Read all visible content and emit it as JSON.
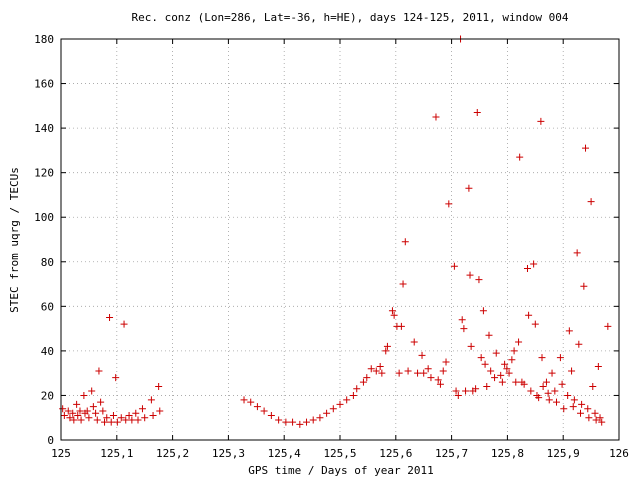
{
  "chart_data": {
    "type": "scatter",
    "title": "Rec. conz (Lon=286, Lat=-36, h=HE), days 124-125, 2011, window 004",
    "xlabel": "GPS time / Days of year 2011",
    "ylabel": "STEC from uqrg / TECUs",
    "xlim": [
      125,
      126
    ],
    "ylim": [
      0,
      180
    ],
    "xticks": [
      "125",
      "125,1",
      "125,2",
      "125,3",
      "125,4",
      "125,5",
      "125,6",
      "125,7",
      "125,8",
      "125,9",
      "126"
    ],
    "yticks": [
      "0",
      "20",
      "40",
      "60",
      "80",
      "100",
      "120",
      "140",
      "160",
      "180"
    ],
    "grid": true,
    "marker": "plus",
    "color": "#cc0000",
    "points": [
      [
        125.003,
        14
      ],
      [
        125.006,
        11
      ],
      [
        125.013,
        13
      ],
      [
        125.016,
        10
      ],
      [
        125.021,
        12
      ],
      [
        125.023,
        9
      ],
      [
        125.028,
        16
      ],
      [
        125.03,
        11
      ],
      [
        125.034,
        13
      ],
      [
        125.036,
        9
      ],
      [
        125.041,
        20
      ],
      [
        125.043,
        12
      ],
      [
        125.047,
        13
      ],
      [
        125.05,
        10
      ],
      [
        125.055,
        22
      ],
      [
        125.058,
        15
      ],
      [
        125.062,
        12
      ],
      [
        125.065,
        9
      ],
      [
        125.068,
        31
      ],
      [
        125.071,
        17
      ],
      [
        125.075,
        13
      ],
      [
        125.078,
        8
      ],
      [
        125.082,
        10
      ],
      [
        125.087,
        55
      ],
      [
        125.09,
        8
      ],
      [
        125.094,
        11
      ],
      [
        125.098,
        28
      ],
      [
        125.101,
        8
      ],
      [
        125.108,
        10
      ],
      [
        125.113,
        52
      ],
      [
        125.116,
        9
      ],
      [
        125.122,
        11
      ],
      [
        125.127,
        9
      ],
      [
        125.134,
        12
      ],
      [
        125.138,
        9
      ],
      [
        125.146,
        14
      ],
      [
        125.15,
        10
      ],
      [
        125.162,
        18
      ],
      [
        125.165,
        11
      ],
      [
        125.175,
        24
      ],
      [
        125.177,
        13
      ],
      [
        125.328,
        18
      ],
      [
        125.34,
        17
      ],
      [
        125.352,
        15
      ],
      [
        125.364,
        13
      ],
      [
        125.377,
        11
      ],
      [
        125.39,
        9
      ],
      [
        125.403,
        8
      ],
      [
        125.415,
        8
      ],
      [
        125.428,
        7
      ],
      [
        125.44,
        8
      ],
      [
        125.452,
        9
      ],
      [
        125.464,
        10
      ],
      [
        125.476,
        12
      ],
      [
        125.488,
        14
      ],
      [
        125.5,
        16
      ],
      [
        125.512,
        18
      ],
      [
        125.524,
        20
      ],
      [
        125.53,
        23
      ],
      [
        125.542,
        26
      ],
      [
        125.548,
        28
      ],
      [
        125.556,
        32
      ],
      [
        125.565,
        31
      ],
      [
        125.572,
        33
      ],
      [
        125.575,
        30
      ],
      [
        125.582,
        40
      ],
      [
        125.585,
        42
      ],
      [
        125.594,
        58
      ],
      [
        125.597,
        56
      ],
      [
        125.602,
        51
      ],
      [
        125.606,
        30
      ],
      [
        125.61,
        51
      ],
      [
        125.613,
        70
      ],
      [
        125.617,
        89
      ],
      [
        125.622,
        31
      ],
      [
        125.633,
        44
      ],
      [
        125.639,
        30
      ],
      [
        125.647,
        38
      ],
      [
        125.65,
        30
      ],
      [
        125.658,
        32
      ],
      [
        125.663,
        28
      ],
      [
        125.672,
        145
      ],
      [
        125.676,
        27
      ],
      [
        125.68,
        25
      ],
      [
        125.685,
        31
      ],
      [
        125.69,
        35
      ],
      [
        125.695,
        106
      ],
      [
        125.705,
        78
      ],
      [
        125.708,
        22
      ],
      [
        125.712,
        20
      ],
      [
        125.716,
        180
      ],
      [
        125.719,
        54
      ],
      [
        125.722,
        50
      ],
      [
        125.725,
        22
      ],
      [
        125.731,
        113
      ],
      [
        125.733,
        74
      ],
      [
        125.735,
        42
      ],
      [
        125.738,
        22
      ],
      [
        125.743,
        23
      ],
      [
        125.746,
        147
      ],
      [
        125.749,
        72
      ],
      [
        125.753,
        37
      ],
      [
        125.757,
        58
      ],
      [
        125.76,
        34
      ],
      [
        125.763,
        24
      ],
      [
        125.767,
        47
      ],
      [
        125.77,
        31
      ],
      [
        125.777,
        28
      ],
      [
        125.78,
        39
      ],
      [
        125.788,
        29
      ],
      [
        125.791,
        26
      ],
      [
        125.795,
        34
      ],
      [
        125.799,
        32
      ],
      [
        125.803,
        30
      ],
      [
        125.808,
        36
      ],
      [
        125.812,
        40
      ],
      [
        125.815,
        26
      ],
      [
        125.82,
        44
      ],
      [
        125.822,
        127
      ],
      [
        125.826,
        26
      ],
      [
        125.83,
        25
      ],
      [
        125.836,
        77
      ],
      [
        125.838,
        56
      ],
      [
        125.842,
        22
      ],
      [
        125.847,
        79
      ],
      [
        125.85,
        52
      ],
      [
        125.853,
        20
      ],
      [
        125.856,
        19
      ],
      [
        125.86,
        143
      ],
      [
        125.862,
        37
      ],
      [
        125.864,
        24
      ],
      [
        125.87,
        26
      ],
      [
        125.873,
        21
      ],
      [
        125.875,
        18
      ],
      [
        125.88,
        30
      ],
      [
        125.885,
        22
      ],
      [
        125.888,
        17
      ],
      [
        125.895,
        37
      ],
      [
        125.898,
        25
      ],
      [
        125.901,
        14
      ],
      [
        125.908,
        20
      ],
      [
        125.911,
        49
      ],
      [
        125.915,
        31
      ],
      [
        125.918,
        15
      ],
      [
        125.92,
        18
      ],
      [
        125.925,
        84
      ],
      [
        125.928,
        43
      ],
      [
        125.931,
        12
      ],
      [
        125.933,
        16
      ],
      [
        125.937,
        69
      ],
      [
        125.94,
        131
      ],
      [
        125.944,
        14
      ],
      [
        125.946,
        10
      ],
      [
        125.95,
        107
      ],
      [
        125.953,
        24
      ],
      [
        125.957,
        12
      ],
      [
        125.959,
        9
      ],
      [
        125.963,
        33
      ],
      [
        125.966,
        10
      ],
      [
        125.969,
        8
      ],
      [
        125.98,
        51
      ]
    ]
  }
}
